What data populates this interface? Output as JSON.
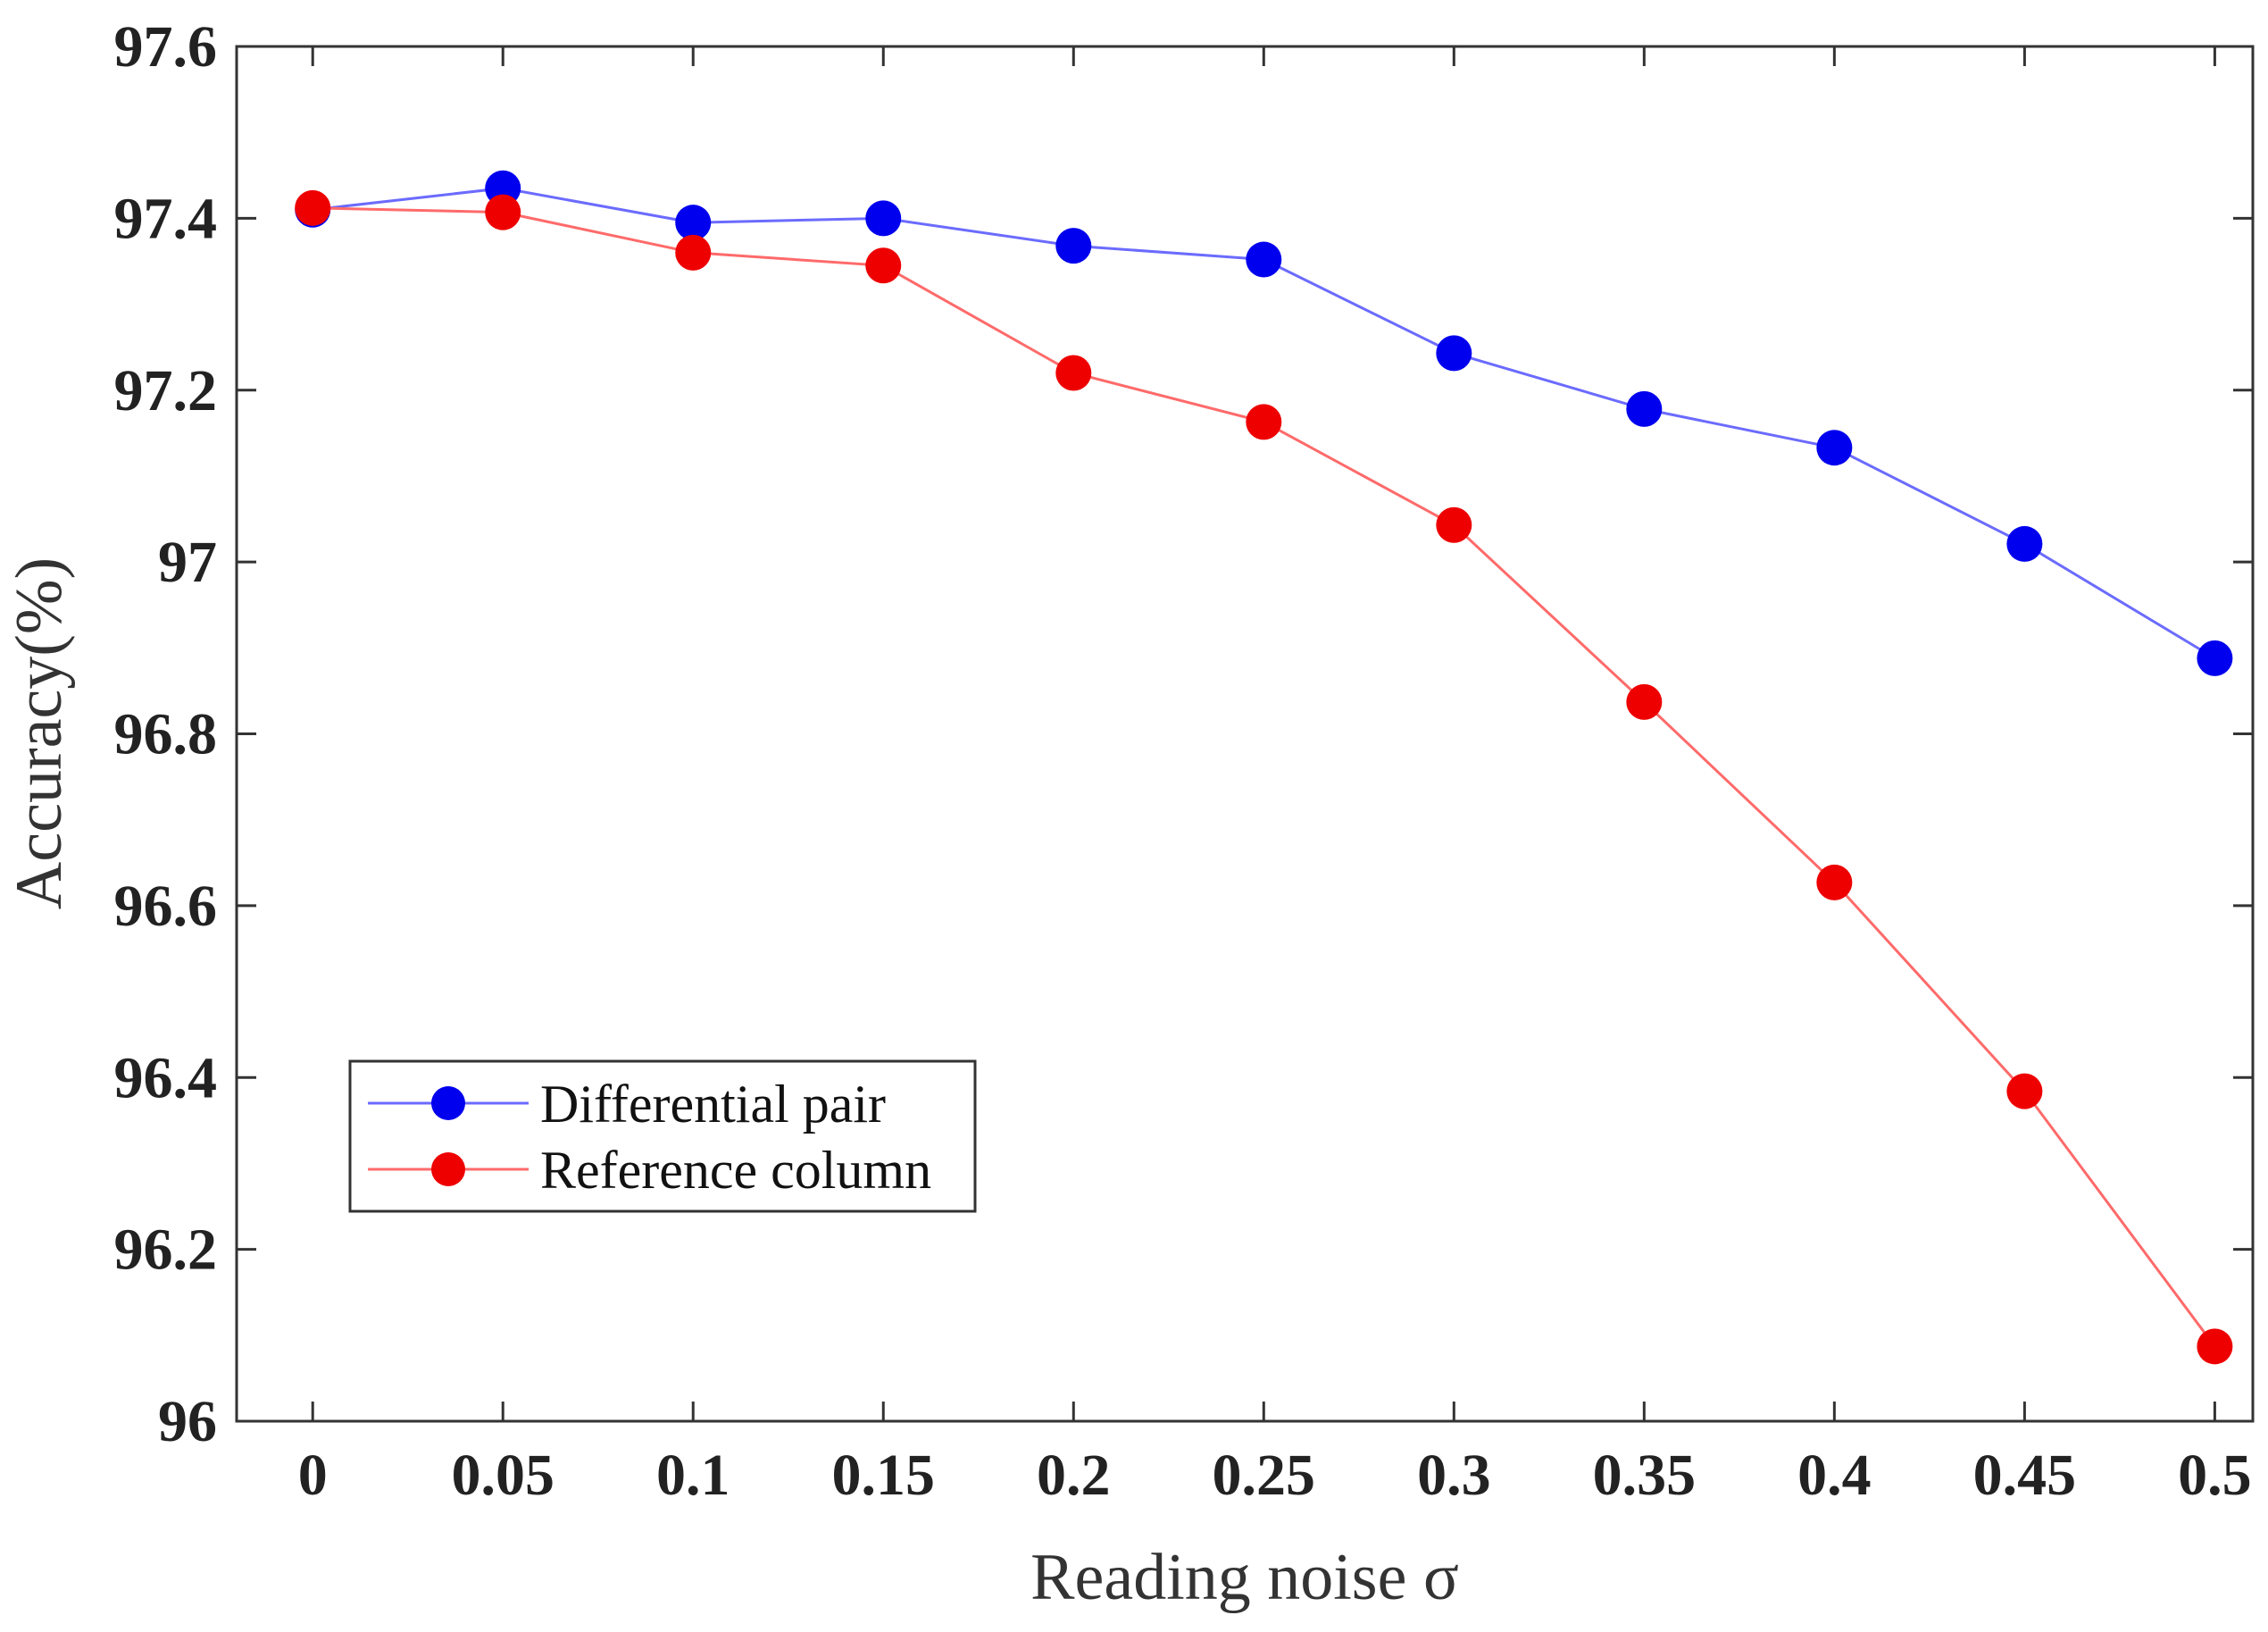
{
  "chart_data": {
    "type": "line",
    "title": "",
    "xlabel": "Reading noise σ",
    "ylabel": "Accuracy(%)",
    "x": [
      0,
      0.05,
      0.1,
      0.15,
      0.2,
      0.25,
      0.3,
      0.35,
      0.4,
      0.45,
      0.5
    ],
    "x_tick_labels": [
      "0",
      "0.05",
      "0.1",
      "0.15",
      "0.2",
      "0.25",
      "0.3",
      "0.35",
      "0.4",
      "0.45",
      "0.5"
    ],
    "xlim": [
      -0.02,
      0.51
    ],
    "ylim": [
      96,
      97.6
    ],
    "y_ticks": [
      96,
      96.2,
      96.4,
      96.6,
      96.8,
      97,
      97.2,
      97.4,
      97.6
    ],
    "y_tick_labels": [
      "96",
      "96.2",
      "96.4",
      "96.6",
      "96.8",
      "97",
      "97.2",
      "97.4",
      "97.6"
    ],
    "grid": false,
    "legend_position": "lower-left",
    "series": [
      {
        "name": "Differential pair",
        "color": "#0000ee",
        "line_color": "#6b6bff",
        "values": [
          97.41,
          97.435,
          97.395,
          97.4,
          97.368,
          97.352,
          97.243,
          97.178,
          97.133,
          97.021,
          96.888
        ]
      },
      {
        "name": "Reference column",
        "color": "#ee0000",
        "line_color": "#ff6a6a",
        "values": [
          97.412,
          97.407,
          97.36,
          97.345,
          97.22,
          97.163,
          97.043,
          96.837,
          96.627,
          96.384,
          96.087
        ]
      }
    ]
  }
}
